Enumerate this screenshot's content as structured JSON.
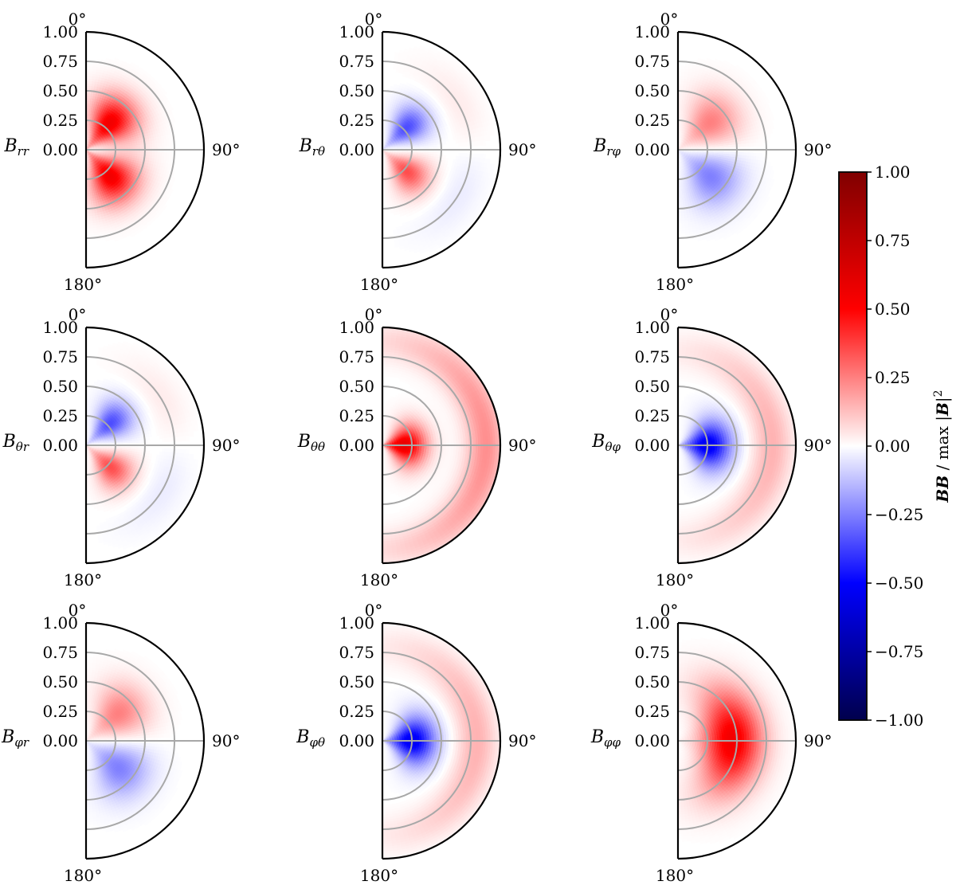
{
  "chart_data": {
    "type": "heatmap",
    "description_title": "",
    "layout": "3x3 half-disk polar panels (r from 0 at center to 1 at rim, angle theta from 0 deg at top to 180 deg at bottom)",
    "radial_ticks": [
      0.0,
      0.25,
      0.5,
      0.75,
      1.0
    ],
    "radial_tick_labels": [
      "0.00",
      "0.25",
      "0.50",
      "0.75",
      "1.00"
    ],
    "rlim": [
      0,
      1
    ],
    "angle_labels": {
      "top": "0°",
      "right": "90°",
      "bottom": "180°"
    },
    "colorbar": {
      "label": "BB / max |B|²",
      "label_parts": {
        "bold": "BB",
        "mid": " / max |",
        "bold2": "B",
        "tail": "|",
        "sup": "2"
      },
      "vmin": -1.0,
      "vmax": 1.0,
      "ticks": [
        1.0,
        0.75,
        0.5,
        0.25,
        0.0,
        -0.25,
        -0.5,
        -0.75,
        -1.0
      ],
      "tick_labels": [
        "1.00",
        "0.75",
        "0.50",
        "0.25",
        "0.00",
        "−0.25",
        "−0.50",
        "−0.75",
        "−1.00"
      ],
      "colormap": "seismic",
      "colors": {
        "min": "#00004c",
        "neg": "#0000ff",
        "zero": "#ffffff",
        "pos": "#ff0000",
        "max": "#800000"
      }
    },
    "panels": [
      {
        "component": "rr",
        "label_base": "B",
        "label_sub": "rr",
        "peak": 0.55,
        "pattern": "two lobes near the axis; positive above and below the equator, peak r~0.3, theta~40deg and 140deg",
        "blobs": [
          {
            "r": 0.3,
            "th": 42,
            "sr": 0.17,
            "st": 22,
            "a": 0.55
          },
          {
            "r": 0.3,
            "th": 138,
            "sr": 0.17,
            "st": 22,
            "a": 0.55
          }
        ]
      },
      {
        "component": "rθ",
        "label_base": "B",
        "label_sub": "rθ",
        "peak": 0.35,
        "pattern": "antisymmetric about equator; negative lobe above, positive lobe below",
        "blobs": [
          {
            "r": 0.28,
            "th": 48,
            "sr": 0.14,
            "st": 18,
            "a": -0.35
          },
          {
            "r": 0.28,
            "th": 132,
            "sr": 0.14,
            "st": 18,
            "a": 0.35
          },
          {
            "r": 0.75,
            "th": 60,
            "sr": 0.12,
            "st": 25,
            "a": 0.04
          },
          {
            "r": 0.75,
            "th": 120,
            "sr": 0.12,
            "st": 25,
            "a": -0.04
          }
        ]
      },
      {
        "component": "rφ",
        "label_base": "B",
        "label_sub": "rφ",
        "peak": 0.25,
        "pattern": "antisymmetric about equator; positive lobe above, negative lobe below",
        "blobs": [
          {
            "r": 0.36,
            "th": 50,
            "sr": 0.18,
            "st": 22,
            "a": 0.25
          },
          {
            "r": 0.36,
            "th": 130,
            "sr": 0.18,
            "st": 22,
            "a": -0.25
          }
        ]
      },
      {
        "component": "θr",
        "label_base": "B",
        "label_sub": "θr",
        "peak": 0.35,
        "pattern": "antisymmetric about equator; negative lobe above, positive lobe below",
        "blobs": [
          {
            "r": 0.28,
            "th": 48,
            "sr": 0.14,
            "st": 18,
            "a": -0.35
          },
          {
            "r": 0.28,
            "th": 132,
            "sr": 0.14,
            "st": 18,
            "a": 0.35
          },
          {
            "r": 0.75,
            "th": 60,
            "sr": 0.12,
            "st": 25,
            "a": 0.04
          },
          {
            "r": 0.75,
            "th": 120,
            "sr": 0.12,
            "st": 25,
            "a": -0.04
          }
        ]
      },
      {
        "component": "θθ",
        "label_base": "B",
        "label_sub": "θθ",
        "peak": 0.6,
        "pattern": "strong positive core near center on the equator plus weak positive outer shell",
        "blobs": [
          {
            "r": 0.18,
            "th": 90,
            "sr": 0.13,
            "st": 30,
            "a": 0.6
          },
          {
            "r": 0.88,
            "th": 90,
            "sr": 0.12,
            "st": 60,
            "a": 0.22
          }
        ]
      },
      {
        "component": "θφ",
        "label_base": "B",
        "label_sub": "θφ",
        "peak": 0.55,
        "pattern": "negative core on the equator plus weak positive outer shell",
        "blobs": [
          {
            "r": 0.25,
            "th": 90,
            "sr": 0.14,
            "st": 28,
            "a": -0.55
          },
          {
            "r": 0.8,
            "th": 90,
            "sr": 0.12,
            "st": 55,
            "a": 0.15
          }
        ]
      },
      {
        "component": "φr",
        "label_base": "B",
        "label_sub": "φr",
        "peak": 0.25,
        "pattern": "antisymmetric about equator; positive lobe above, negative lobe below",
        "blobs": [
          {
            "r": 0.36,
            "th": 50,
            "sr": 0.18,
            "st": 22,
            "a": 0.25
          },
          {
            "r": 0.36,
            "th": 130,
            "sr": 0.18,
            "st": 22,
            "a": -0.25
          }
        ]
      },
      {
        "component": "φθ",
        "label_base": "B",
        "label_sub": "φθ",
        "peak": 0.55,
        "pattern": "negative core on the equator plus weak positive outer shell",
        "blobs": [
          {
            "r": 0.25,
            "th": 90,
            "sr": 0.14,
            "st": 28,
            "a": -0.55
          },
          {
            "r": 0.8,
            "th": 90,
            "sr": 0.12,
            "st": 55,
            "a": 0.15
          }
        ]
      },
      {
        "component": "φφ",
        "label_base": "B",
        "label_sub": "φφ",
        "peak": 0.55,
        "pattern": "broad positive region centred on the equator at r~0.45",
        "blobs": [
          {
            "r": 0.46,
            "th": 90,
            "sr": 0.18,
            "st": 38,
            "a": 0.55
          }
        ]
      }
    ]
  }
}
